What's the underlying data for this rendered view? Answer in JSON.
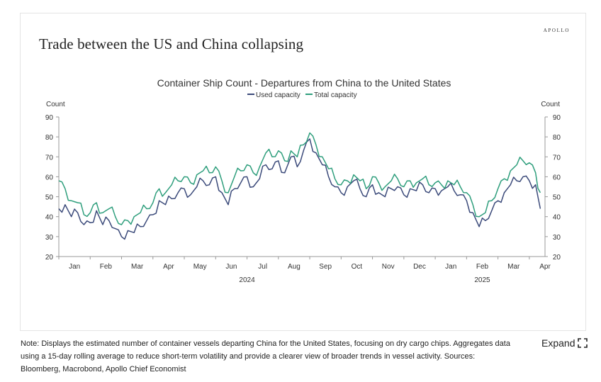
{
  "card": {
    "headline": "Trade between the US and China collapsing",
    "brand": "APOLLO"
  },
  "footer": {
    "note": "Note: Displays the estimated number of container vessels departing China for the United States, focusing on dry cargo chips. Aggregates data using a 15-day rolling average to reduce short-term volatility and provide a clearer view of broader trends in vessel activity. Sources: Bloomberg, Macrobond, Apollo Chief Economist",
    "expand_label": "Expand",
    "expand_icon": "expand-arrows-icon"
  },
  "chart_data": {
    "type": "line",
    "title": "Container Ship Count - Departures from China to the United States",
    "ylabel_left": "Count",
    "ylabel_right": "Count",
    "ylim": [
      20,
      90
    ],
    "yticks": [
      20,
      30,
      40,
      50,
      60,
      70,
      80,
      90
    ],
    "xlim": [
      0,
      15.5
    ],
    "xtick_labels": [
      "Jan",
      "Feb",
      "Mar",
      "Apr",
      "May",
      "Jun",
      "Jul",
      "Aug",
      "Sep",
      "Oct",
      "Nov",
      "Dec",
      "Jan",
      "Feb",
      "Mar",
      "Apr"
    ],
    "year_labels": [
      {
        "label": "2024",
        "month": 6
      },
      {
        "label": "2025",
        "month": 13.5
      }
    ],
    "legend": {
      "position": "top-center"
    },
    "colors": {
      "used": "#3b4a7a",
      "total": "#2e9e7c",
      "axis": "#999999",
      "text": "#333333"
    },
    "series": [
      {
        "name": "Used capacity",
        "x": [
          0,
          0.2,
          0.4,
          0.6,
          0.8,
          1.0,
          1.2,
          1.4,
          1.6,
          1.8,
          2.0,
          2.2,
          2.4,
          2.6,
          2.8,
          3.0,
          3.2,
          3.4,
          3.6,
          3.8,
          4.0,
          4.2,
          4.4,
          4.6,
          4.8,
          5.0,
          5.2,
          5.4,
          5.6,
          5.8,
          6.0,
          6.2,
          6.4,
          6.6,
          6.8,
          7.0,
          7.2,
          7.4,
          7.6,
          7.8,
          8.0,
          8.2,
          8.4,
          8.6,
          8.8,
          9.0,
          9.2,
          9.4,
          9.6,
          9.8,
          10.0,
          10.2,
          10.4,
          10.6,
          10.8,
          11.0,
          11.2,
          11.4,
          11.6,
          11.8,
          12.0,
          12.2,
          12.4,
          12.6,
          12.8,
          13.0,
          13.2,
          13.4,
          13.6,
          13.8,
          14.0,
          14.2,
          14.4,
          14.6,
          14.8,
          15.0,
          15.2,
          15.35
        ],
        "values": [
          44,
          46,
          40,
          42,
          36,
          37,
          43,
          36,
          38,
          34,
          30,
          33,
          32,
          35,
          38,
          41,
          48,
          46,
          49,
          52,
          54,
          51,
          55,
          58,
          56,
          60,
          52,
          46,
          54,
          57,
          60,
          55,
          59,
          66,
          64,
          68,
          62,
          70,
          65,
          73,
          79,
          72,
          66,
          60,
          55,
          52,
          55,
          58,
          54,
          50,
          56,
          52,
          50,
          54,
          55,
          51,
          54,
          53,
          56,
          52,
          54,
          53,
          55,
          53,
          51,
          48,
          42,
          35,
          38,
          43,
          48,
          52,
          56,
          58,
          60,
          58,
          56,
          44
        ]
      },
      {
        "name": "Total capacity",
        "x": [
          0,
          0.2,
          0.4,
          0.6,
          0.8,
          1.0,
          1.2,
          1.4,
          1.6,
          1.8,
          2.0,
          2.2,
          2.4,
          2.6,
          2.8,
          3.0,
          3.2,
          3.4,
          3.6,
          3.8,
          4.0,
          4.2,
          4.4,
          4.6,
          4.8,
          5.0,
          5.2,
          5.4,
          5.6,
          5.8,
          6.0,
          6.2,
          6.4,
          6.6,
          6.8,
          7.0,
          7.2,
          7.4,
          7.6,
          7.8,
          8.0,
          8.2,
          8.4,
          8.6,
          8.8,
          9.0,
          9.2,
          9.4,
          9.6,
          9.8,
          10.0,
          10.2,
          10.4,
          10.6,
          10.8,
          11.0,
          11.2,
          11.4,
          11.6,
          11.8,
          12.0,
          12.2,
          12.4,
          12.6,
          12.8,
          13.0,
          13.2,
          13.4,
          13.6,
          13.8,
          14.0,
          14.2,
          14.4,
          14.6,
          14.8,
          15.0,
          15.2,
          15.35
        ],
        "values": [
          58,
          54,
          48,
          47,
          41,
          42,
          47,
          42,
          44,
          40,
          36,
          38,
          40,
          42,
          44,
          47,
          54,
          52,
          56,
          58,
          60,
          57,
          61,
          63,
          62,
          65,
          58,
          52,
          60,
          63,
          66,
          62,
          65,
          72,
          70,
          73,
          68,
          73,
          70,
          76,
          82,
          76,
          70,
          64,
          59,
          56,
          58,
          61,
          58,
          54,
          60,
          57,
          55,
          58,
          59,
          55,
          58,
          57,
          59,
          56,
          57,
          56,
          58,
          56,
          55,
          52,
          46,
          40,
          42,
          48,
          54,
          59,
          63,
          66,
          68,
          67,
          62,
          52
        ]
      }
    ]
  }
}
